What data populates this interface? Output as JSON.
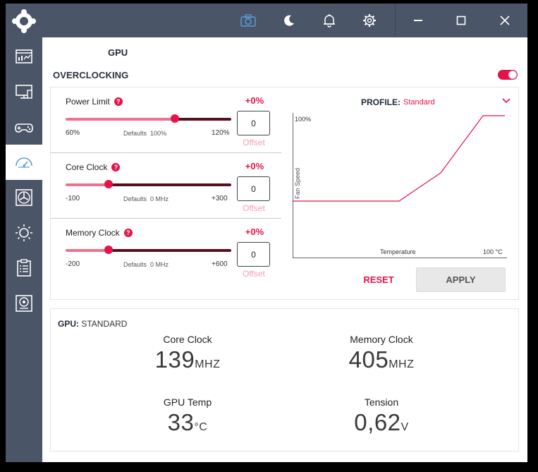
{
  "titlebar": {
    "icons": [
      "camera-icon",
      "moon-icon",
      "bell-icon",
      "gear-icon",
      "minimize-icon",
      "maximize-icon",
      "close-icon"
    ],
    "accent": "#5b9bd5"
  },
  "sidebar": {
    "items": [
      {
        "icon": "dashboard-icon",
        "active": false
      },
      {
        "icon": "monitor-icon",
        "active": false
      },
      {
        "icon": "gamepad-icon",
        "active": false
      },
      {
        "icon": "speedometer-icon",
        "active": true
      },
      {
        "icon": "fan-icon",
        "active": false
      },
      {
        "icon": "brightness-icon",
        "active": false
      },
      {
        "icon": "clipboard-icon",
        "active": false
      },
      {
        "icon": "speaker-icon",
        "active": false
      }
    ]
  },
  "page": {
    "heading": "GPU",
    "section_title": "OVERCLOCKING",
    "toggle_on": true
  },
  "sliders": [
    {
      "label": "Power Limit",
      "percent": "+0%",
      "min": "60%",
      "defaults_label": "Defaults",
      "defaults_value": "100%",
      "max": "120%",
      "value": "0",
      "offset": "Offset",
      "position": 0.66
    },
    {
      "label": "Core Clock",
      "percent": "+0%",
      "min": "-100",
      "defaults_label": "Defaults",
      "defaults_value": "0 MHz",
      "max": "+300",
      "value": "0",
      "offset": "Offset",
      "position": 0.26
    },
    {
      "label": "Memory Clock",
      "percent": "+0%",
      "min": "-200",
      "defaults_label": "Defaults",
      "defaults_value": "0 MHz",
      "max": "+600",
      "value": "0",
      "offset": "Offset",
      "position": 0.26
    }
  ],
  "profile": {
    "label": "PROFILE:",
    "value": "Standard"
  },
  "fan_curve": {
    "y_label": "Fan Speed",
    "x_label": "Temperature",
    "y_max_label": "100%",
    "x_max_label": "100 °C"
  },
  "buttons": {
    "reset": "RESET",
    "apply": "APPLY"
  },
  "stats": {
    "title_bold": "GPU:",
    "title_rest": " STANDARD",
    "items": [
      {
        "label": "Core Clock",
        "value": "139",
        "unit": "MHZ"
      },
      {
        "label": "Memory Clock",
        "value": "405",
        "unit": "MHZ"
      },
      {
        "label": "GPU Temp",
        "value": "33",
        "unit": "°C"
      },
      {
        "label": "Tension",
        "value": "0,62",
        "unit": "V"
      }
    ]
  },
  "colors": {
    "accent": "#e5134a",
    "sidebar": "#4a5568",
    "track_left": "#f07090",
    "track_right": "#5a0d1c"
  }
}
